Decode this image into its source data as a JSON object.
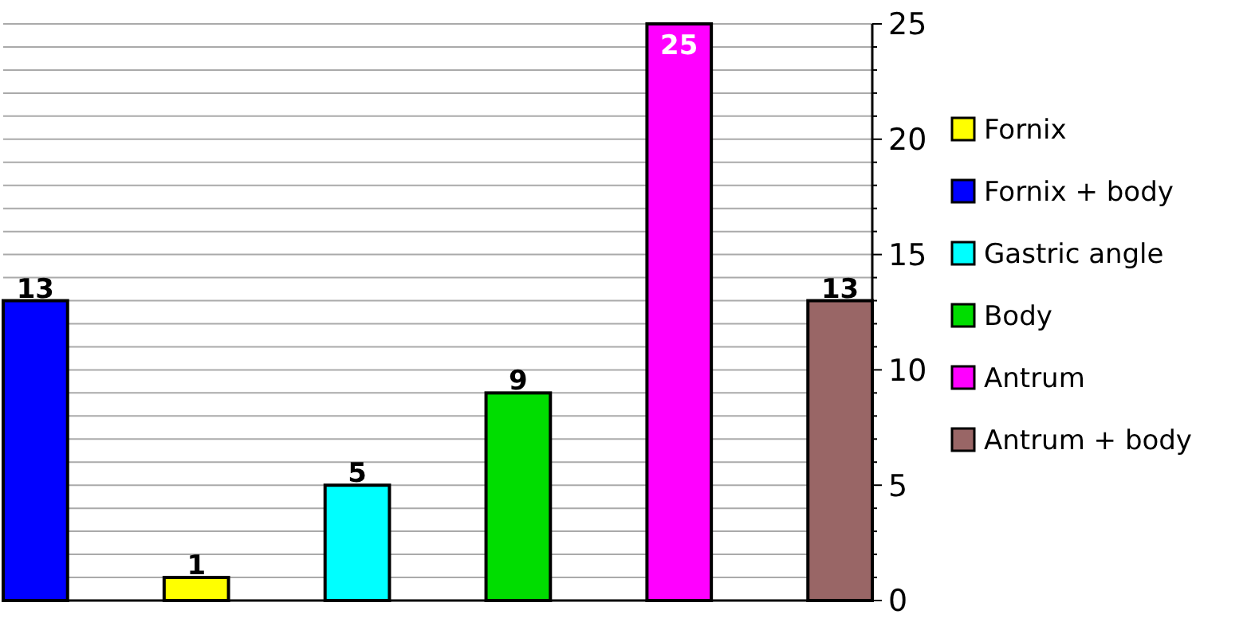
{
  "chart_data": {
    "type": "bar",
    "categories": [
      null,
      null,
      null,
      null,
      null,
      null
    ],
    "series": [
      {
        "name": "Fornix",
        "color": "#ffff00",
        "values": [
          null,
          1,
          null,
          null,
          null,
          null
        ]
      },
      {
        "name": "Fornix + body",
        "color": "#0000ff",
        "values": [
          13,
          null,
          null,
          null,
          null,
          null
        ]
      },
      {
        "name": "Gastric angle",
        "color": "#00ffff",
        "values": [
          null,
          null,
          5,
          null,
          null,
          null
        ]
      },
      {
        "name": "Body",
        "color": "#00dd00",
        "values": [
          null,
          null,
          null,
          9,
          null,
          null
        ]
      },
      {
        "name": "Antrum",
        "color": "#ff00ff",
        "values": [
          null,
          null,
          null,
          null,
          25,
          null
        ]
      },
      {
        "name": "Antrum + body",
        "color": "#996666",
        "values": [
          null,
          null,
          null,
          null,
          null,
          13
        ]
      }
    ],
    "ylim": [
      0,
      25
    ],
    "yticks": [
      0,
      {
        "value": 1,
        "label": null
      },
      {
        "value": 2,
        "label": null
      },
      {
        "value": 3,
        "label": null
      },
      {
        "value": 4,
        "label": null
      },
      5,
      {
        "value": 6,
        "label": null
      },
      {
        "value": 7,
        "label": null
      },
      {
        "value": 8,
        "label": null
      },
      {
        "value": 9,
        "label": null
      },
      10,
      {
        "value": 11,
        "label": null
      },
      {
        "value": 12,
        "label": null
      },
      {
        "value": 13,
        "label": null
      },
      {
        "value": 14,
        "label": null
      },
      15,
      {
        "value": 16,
        "label": null
      },
      {
        "value": 17,
        "label": null
      },
      {
        "value": 18,
        "label": null
      },
      {
        "value": 19,
        "label": null
      },
      20,
      {
        "value": 21,
        "label": null
      },
      {
        "value": 22,
        "label": null
      },
      {
        "value": 23,
        "label": null
      },
      {
        "value": 24,
        "label": null
      },
      25
    ],
    "grid": "y",
    "legend": "right",
    "data_labels": true
  }
}
